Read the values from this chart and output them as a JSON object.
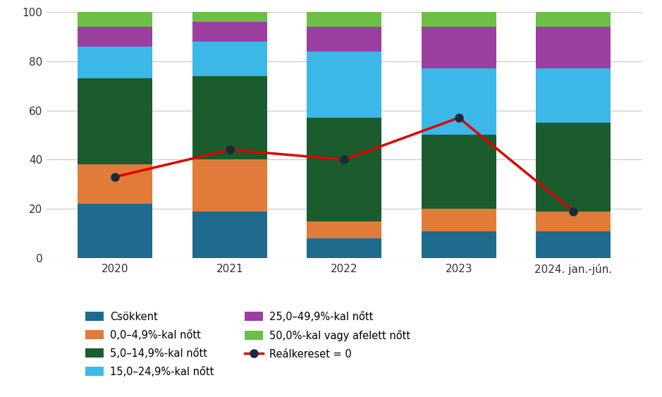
{
  "categories": [
    "2020",
    "2021",
    "2022",
    "2023",
    "2024. jan.-jún."
  ],
  "segments": {
    "Csökkent": [
      22,
      19,
      8,
      11,
      11
    ],
    "0,0–4,9%-kal nőtt": [
      16,
      21,
      7,
      9,
      8
    ],
    "5,0–14,9%-kal nőtt": [
      35,
      34,
      42,
      30,
      36
    ],
    "15,0–24,9%-kal nőtt": [
      13,
      14,
      27,
      27,
      22
    ],
    "25,0–49,9%-kal nőtt": [
      8,
      8,
      10,
      17,
      17
    ],
    "50,0%-kal vagy afelett nőtt": [
      6,
      4,
      6,
      6,
      6
    ]
  },
  "segment_colors": [
    "#1f6b8e",
    "#e07b3a",
    "#1a5c2e",
    "#3bb8e8",
    "#9b3fa0",
    "#6bbf45"
  ],
  "segment_keys": [
    "Csökkent",
    "0,0–4,9%-kal nőtt",
    "5,0–14,9%-kal nőtt",
    "15,0–24,9%-kal nőtt",
    "25,0–49,9%-kal nőtt",
    "50,0%-kal vagy afelett nőtt"
  ],
  "line_values": [
    33,
    44,
    40,
    57,
    19
  ],
  "line_color": "#e00000",
  "line_marker_color": "#1a2a3a",
  "ylim": [
    0,
    100
  ],
  "yticks": [
    0,
    20,
    40,
    60,
    80,
    100
  ],
  "bar_width": 0.65,
  "background_color": "#ffffff",
  "grid_color": "#c8c8c8",
  "legend_col1": [
    "Csökkent",
    "5,0–14,9%-kal nőtt",
    "25,0–49,9%-kal nőtt",
    "Reálkereset = 0"
  ],
  "legend_col2": [
    "0,0–4,9%-kal nőtt",
    "15,0–24,9%-kal nőtt",
    "50,0%-kal vagy afelett nőtt"
  ]
}
